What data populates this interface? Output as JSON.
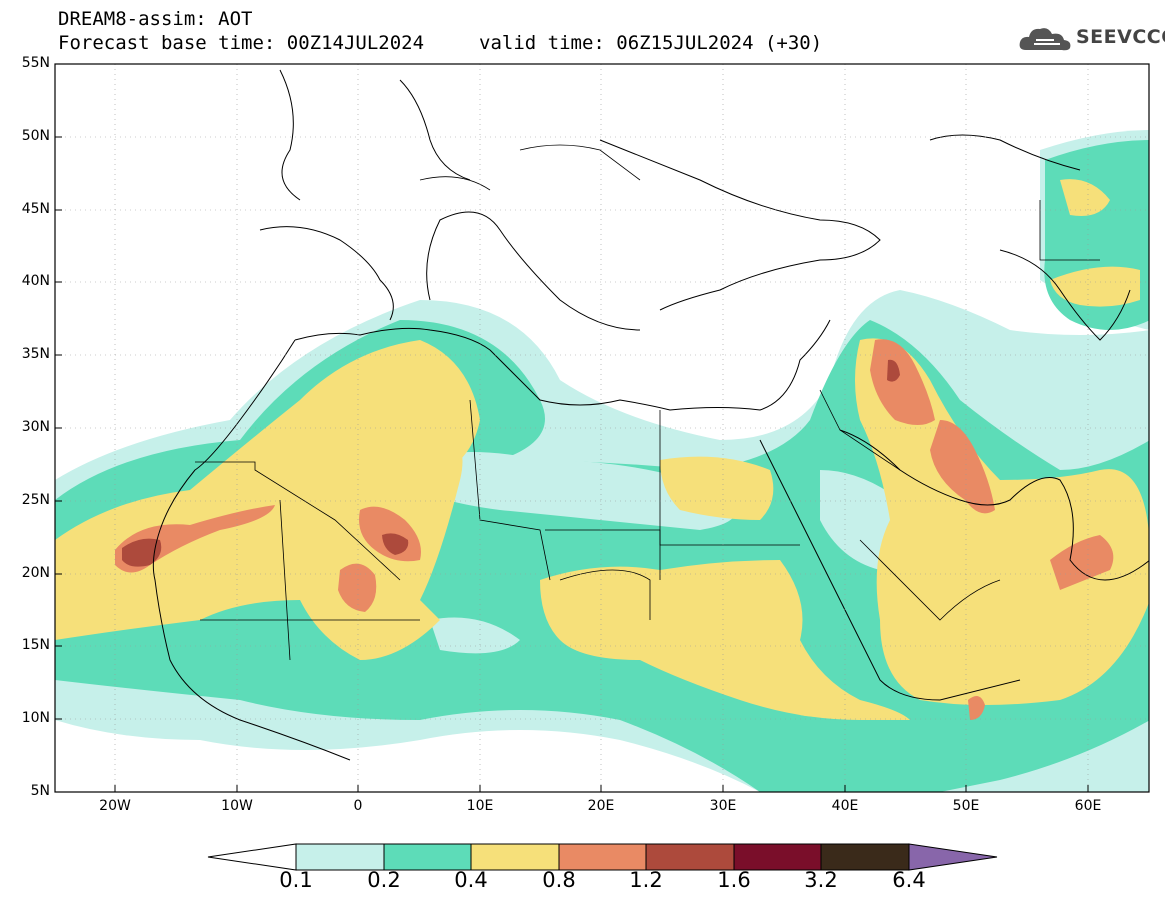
{
  "header": {
    "title_line1": "DREAM8-assim: AOT",
    "title_line2": "Forecast base time: 00Z14JUL2024",
    "valid_time": "valid time: 06Z15JUL2024 (+30)",
    "logo_text": "SEEVCCC"
  },
  "axes": {
    "lat_labels": [
      "55N",
      "50N",
      "45N",
      "40N",
      "35N",
      "30N",
      "25N",
      "20N",
      "15N",
      "10N",
      "5N"
    ],
    "lon_labels": [
      "20W",
      "10W",
      "0",
      "10E",
      "20E",
      "30E",
      "40E",
      "50E",
      "60E"
    ]
  },
  "colorbar": {
    "labels": [
      "0.1",
      "0.2",
      "0.4",
      "0.8",
      "1.2",
      "1.6",
      "3.2",
      "6.4"
    ],
    "colors": [
      "#ffffff",
      "#c6f0ea",
      "#5ddcb8",
      "#f6e07a",
      "#e98a64",
      "#ad4a3c",
      "#7a0e2a",
      "#3a2a1a",
      "#8866aa"
    ]
  },
  "map": {
    "lon_range": [
      -25,
      65
    ],
    "lat_range": [
      5,
      55
    ],
    "field": "AOT"
  }
}
